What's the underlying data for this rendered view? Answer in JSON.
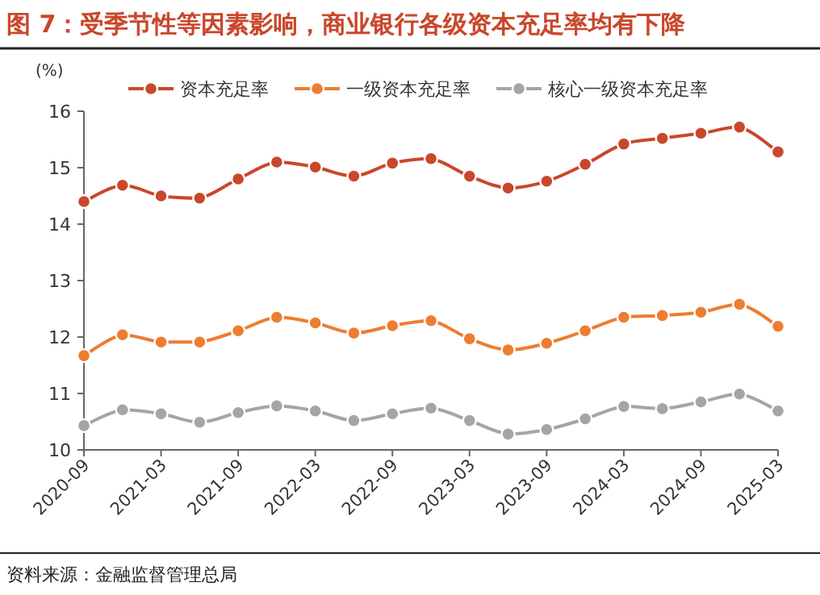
{
  "chart_data": {
    "type": "line",
    "title": "图 7：受季节性等因素影响，商业银行各级资本充足率均有下降",
    "ylabel": "(%)",
    "categories": [
      "2020-09",
      null,
      "2021-03",
      null,
      "2021-09",
      null,
      "2022-03",
      null,
      "2022-09",
      null,
      "2023-03",
      null,
      "2023-09",
      null,
      "2024-03",
      null,
      "2024-09",
      null,
      "2025-03"
    ],
    "series": [
      {
        "name": "资本充足率",
        "color": "#c9472b",
        "values": [
          14.4,
          14.69,
          14.5,
          14.46,
          14.8,
          15.1,
          15.01,
          14.85,
          15.08,
          15.16,
          14.85,
          14.64,
          14.76,
          15.06,
          15.42,
          15.52,
          15.61,
          15.72,
          15.28
        ]
      },
      {
        "name": "一级资本充足率",
        "color": "#ed7d31",
        "values": [
          11.67,
          12.04,
          11.91,
          11.91,
          12.11,
          12.35,
          12.25,
          12.07,
          12.2,
          12.29,
          11.97,
          11.77,
          11.89,
          12.11,
          12.35,
          12.38,
          12.44,
          12.58,
          12.19
        ]
      },
      {
        "name": "核心一级资本充足率",
        "color": "#a5a5a5",
        "values": [
          10.43,
          10.71,
          10.64,
          10.49,
          10.66,
          10.78,
          10.69,
          10.52,
          10.64,
          10.74,
          10.52,
          10.28,
          10.36,
          10.55,
          10.77,
          10.73,
          10.85,
          10.99,
          10.69
        ]
      }
    ],
    "ylim": [
      10,
      16
    ],
    "yticks": [
      10,
      11,
      12,
      13,
      14,
      15,
      16
    ],
    "grid": false,
    "legend": "top",
    "marker": "circle",
    "line_style": "solid",
    "annotations": [
      "资料来源：金融监督管理总局"
    ]
  }
}
